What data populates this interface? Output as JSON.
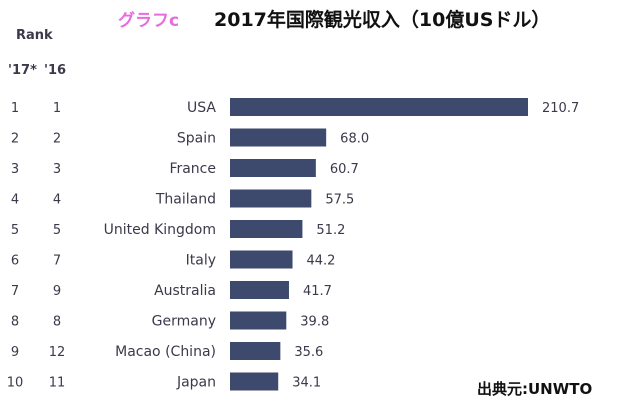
{
  "header": {
    "graph_label": "グラフc",
    "title": "2017年国際観光収入（10億USドル）"
  },
  "rank_header": {
    "rank": "Rank",
    "col_2017": "'17*",
    "col_2016": "'16"
  },
  "source": "出典元:UNWTO",
  "colors": {
    "bar": "#3d4a6e",
    "text": "#3a3a4a",
    "accent": "#e86be0"
  },
  "chart_data": {
    "type": "bar",
    "orientation": "horizontal",
    "title": "2017年国際観光収入（10億USドル）",
    "xlabel": "",
    "ylabel": "",
    "xlim": [
      0,
      210.7
    ],
    "grid": false,
    "legend": "none",
    "categories": [
      "USA",
      "Spain",
      "France",
      "Thailand",
      "United Kingdom",
      "Italy",
      "Australia",
      "Germany",
      "Macao (China)",
      "Japan"
    ],
    "rank_2017": [
      "1",
      "2",
      "3",
      "4",
      "5",
      "6",
      "7",
      "8",
      "9",
      "10"
    ],
    "rank_2016": [
      "1",
      "2",
      "3",
      "4",
      "5",
      "7",
      "9",
      "8",
      "12",
      "11"
    ],
    "values": [
      210.7,
      68.0,
      60.7,
      57.5,
      51.2,
      44.2,
      41.7,
      39.8,
      35.6,
      34.1
    ],
    "value_labels": [
      "210.7",
      "68.0",
      "60.7",
      "57.5",
      "51.2",
      "44.2",
      "41.7",
      "39.8",
      "35.6",
      "34.1"
    ]
  }
}
